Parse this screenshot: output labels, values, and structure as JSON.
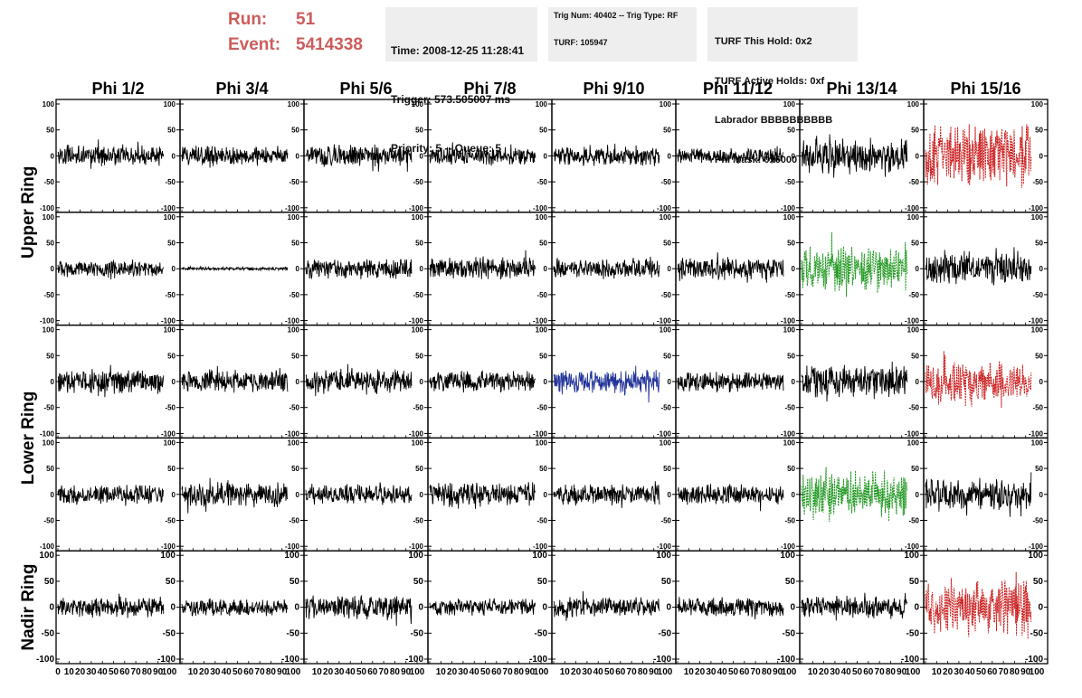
{
  "header": {
    "run_label": "Run:",
    "run_value": "51",
    "event_label": "Event:",
    "event_value": "5414338",
    "info1": [
      "Time: 2008-12-25 11:28:41",
      "Trigger: 573.505007 ms",
      "Priority: 5 -- Queue: 5"
    ],
    "info2_line1": "Trig Num: 40402 -- Trig Type: RF",
    "info2_line2": "TURF: 105947",
    "info3": [
      "TURF This Hold: 0x2",
      "TURF Active Holds: 0xf",
      "Labrador BBBBBBBBBB",
      "Phi Mask: 0x6000"
    ]
  },
  "chart_data": {
    "type": "line",
    "columns": [
      "Phi 1/2",
      "Phi 3/4",
      "Phi 5/6",
      "Phi 7/8",
      "Phi 9/10",
      "Phi 11/12",
      "Phi 13/14",
      "Phi 15/16"
    ],
    "ring_labels": [
      "Upper Ring",
      "Lower Ring",
      "Nadir Ring"
    ],
    "ring_row_spans": [
      [
        0,
        1
      ],
      [
        2,
        3
      ],
      [
        4,
        4
      ]
    ],
    "ylim": [
      -100,
      100
    ],
    "yticks": [
      -100,
      -50,
      0,
      50,
      100
    ],
    "xlim": [
      0,
      100
    ],
    "xticks": [
      0,
      10,
      20,
      30,
      40,
      50,
      60,
      70,
      80,
      90,
      100
    ],
    "colors": {
      "default": "#000000",
      "red": "#cc2222",
      "green": "#229922",
      "blue": "#223399"
    },
    "waveform_amplitudes": [
      [
        18,
        18,
        20,
        17,
        18,
        14,
        30,
        55
      ],
      [
        14,
        3,
        18,
        20,
        18,
        20,
        40,
        30
      ],
      [
        22,
        20,
        22,
        18,
        22,
        18,
        30,
        35
      ],
      [
        18,
        22,
        18,
        22,
        18,
        18,
        38,
        28
      ],
      [
        18,
        15,
        20,
        15,
        18,
        18,
        20,
        50
      ]
    ],
    "waveform_colors": [
      [
        "default",
        "default",
        "default",
        "default",
        "default",
        "default",
        "default",
        "red"
      ],
      [
        "default",
        "default",
        "default",
        "default",
        "default",
        "default",
        "green",
        "default"
      ],
      [
        "default",
        "default",
        "default",
        "default",
        "blue",
        "default",
        "default",
        "red"
      ],
      [
        "default",
        "default",
        "default",
        "default",
        "default",
        "default",
        "green",
        "default"
      ],
      [
        "default",
        "default",
        "default",
        "default",
        "default",
        "default",
        "default",
        "red"
      ]
    ]
  }
}
